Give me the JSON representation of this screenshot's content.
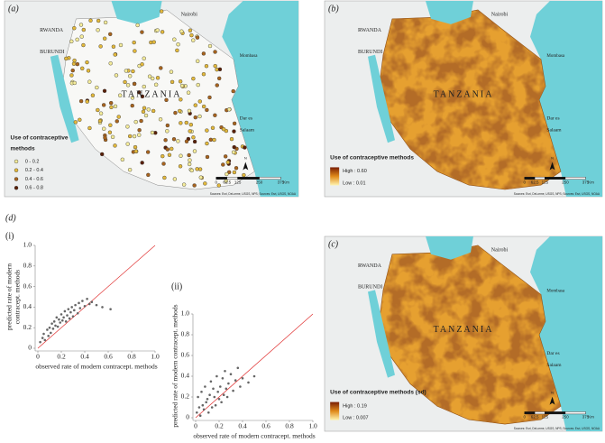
{
  "chart_data": [
    {
      "type": "scatter",
      "panel": "(i)",
      "xlabel": "observed rate of modern contracept. methods",
      "ylabel": [
        "predicted rate of modern",
        "contracept. methods"
      ],
      "xlim": [
        0,
        1
      ],
      "ylim": [
        0,
        1
      ],
      "xticks": [
        0,
        0.2,
        0.4,
        0.6,
        0.8,
        {
          "value": 1,
          "label": "1.0"
        }
      ],
      "yticks": [
        0,
        0.2,
        0.4,
        0.6,
        0.8,
        {
          "value": 1,
          "label": "1.0"
        }
      ],
      "color": "#666666",
      "reference_color": "#e03030",
      "x": [
        0.02,
        0.04,
        0.05,
        0.06,
        0.08,
        0.09,
        0.1,
        0.11,
        0.12,
        0.13,
        0.14,
        0.15,
        0.16,
        0.17,
        0.18,
        0.19,
        0.2,
        0.21,
        0.22,
        0.23,
        0.24,
        0.25,
        0.26,
        0.27,
        0.28,
        0.29,
        0.3,
        0.31,
        0.32,
        0.34,
        0.35,
        0.36,
        0.38,
        0.4,
        0.42,
        0.44,
        0.46,
        0.5,
        0.55,
        0.62
      ],
      "values": [
        0.06,
        0.1,
        0.14,
        0.08,
        0.18,
        0.12,
        0.2,
        0.15,
        0.24,
        0.19,
        0.26,
        0.22,
        0.3,
        0.21,
        0.28,
        0.25,
        0.33,
        0.27,
        0.3,
        0.36,
        0.26,
        0.32,
        0.38,
        0.29,
        0.35,
        0.4,
        0.31,
        0.37,
        0.42,
        0.34,
        0.44,
        0.39,
        0.46,
        0.41,
        0.48,
        0.43,
        0.45,
        0.42,
        0.4,
        0.38
      ]
    },
    {
      "type": "scatter",
      "panel": "(ii)",
      "xlabel": "observed rate of modern contracept. methods",
      "ylabel": [
        "predicted rate of modern contracept. methods"
      ],
      "xlim": [
        0,
        1
      ],
      "ylim": [
        0,
        1
      ],
      "xticks": [
        0,
        0.2,
        0.4,
        0.6,
        0.8,
        {
          "value": 1,
          "label": "1.0"
        }
      ],
      "yticks": [
        0,
        0.2,
        0.4,
        0.6,
        0.8,
        {
          "value": 1,
          "label": "1.0"
        }
      ],
      "color": "#666666",
      "reference_color": "#e03030",
      "x": [
        0.01,
        0.02,
        0.03,
        0.04,
        0.05,
        0.06,
        0.07,
        0.08,
        0.09,
        0.1,
        0.11,
        0.12,
        0.13,
        0.14,
        0.15,
        0.16,
        0.17,
        0.18,
        0.19,
        0.2,
        0.21,
        0.22,
        0.23,
        0.24,
        0.25,
        0.26,
        0.27,
        0.28,
        0.3,
        0.32,
        0.34,
        0.36,
        0.38,
        0.4,
        0.45,
        0.5
      ],
      "values": [
        0.05,
        0.2,
        0.1,
        0.02,
        0.25,
        0.12,
        0.08,
        0.3,
        0.15,
        0.18,
        0.05,
        0.22,
        0.35,
        0.1,
        0.28,
        0.2,
        0.12,
        0.4,
        0.25,
        0.18,
        0.3,
        0.15,
        0.38,
        0.22,
        0.45,
        0.28,
        0.2,
        0.33,
        0.42,
        0.26,
        0.36,
        0.48,
        0.3,
        0.38,
        0.34,
        0.4
      ]
    }
  ],
  "panel_d": "(d)",
  "maps": [
    {
      "label": "(a)",
      "style": "points",
      "places": {
        "nairobi": "Nairobi",
        "rwanda": "RWANDA",
        "burundi": "BURUNDI",
        "country": "TANZANIA",
        "mombasa": "Mombasa",
        "dar1": "Dar es",
        "dar2": "Salaam"
      },
      "legend": {
        "title": [
          "Use of contraceptive",
          "methods"
        ],
        "items": [
          {
            "label": "0 - 0.2",
            "color": "#f5ec9a"
          },
          {
            "label": "0.2 - 0.4",
            "color": "#e3b93c"
          },
          {
            "label": "0.4 - 0.6",
            "color": "#a8641e"
          },
          {
            "label": "0.6 - 0.8",
            "color": "#5a2008"
          }
        ]
      },
      "scale": [
        "0",
        "62.5",
        "125",
        "250",
        "375",
        "Km"
      ],
      "north": "N",
      "source": "Sources: Esri, DeLorme, USGS, NPS; Sources: Esri, USGS, NOAA"
    },
    {
      "label": "(b)",
      "style": "surface",
      "places": {
        "nairobi": "Nairobi",
        "rwanda": "RWANDA",
        "burundi": "BURUNDI",
        "country": "TANZANIA",
        "mombasa": "Mombasa",
        "dar1": "Dar es",
        "dar2": "Salaam"
      },
      "legend": {
        "title": [
          "Use of contraceptive methods"
        ],
        "high": "High : 0.60",
        "low": "Low : 0.01"
      },
      "scale": [
        "0",
        "62.5",
        "125",
        "250",
        "375",
        "Km"
      ],
      "north": "N",
      "source": "Sources: Esri, DeLorme, USGS, NPS; Sources: Esri, USGS, NOAA"
    },
    {
      "label": "(c)",
      "style": "surface",
      "places": {
        "nairobi": "Nairobi",
        "rwanda": "RWANDA",
        "burundi": "BURUNDI",
        "country": "TANZANIA",
        "mombasa": "Mombasa",
        "dar1": "Dar es",
        "dar2": "Salaam"
      },
      "legend": {
        "title": [
          "Use of contraceptive methods (sd)"
        ],
        "high": "High : 0.19",
        "low": "Low : 0.007"
      },
      "scale": [
        "0",
        "62.5",
        "125",
        "250",
        "375",
        "Km"
      ],
      "north": "N",
      "source": "Sources: Esri, DeLorme, USGS, NPS; Sources: Esri, USGS, NOAA"
    }
  ]
}
